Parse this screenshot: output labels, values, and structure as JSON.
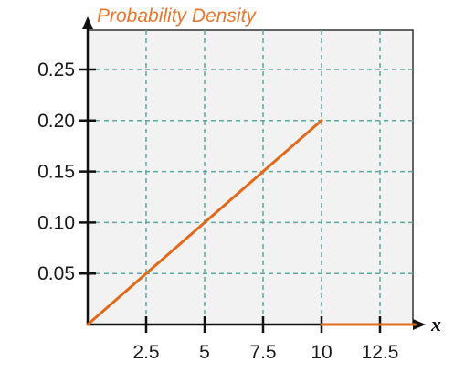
{
  "chart_data": {
    "type": "line",
    "title": "Probability Density",
    "xlabel": "x",
    "ylabel": "",
    "xlim": [
      0,
      14.25
    ],
    "ylim": [
      0,
      0.28
    ],
    "x_ticks": [
      2.5,
      5,
      7.5,
      10,
      12.5
    ],
    "x_tick_labels": [
      "2.5",
      "5",
      "7.5",
      "10",
      "12.5"
    ],
    "y_ticks": [
      0.05,
      0.1,
      0.15,
      0.2,
      0.25
    ],
    "y_tick_labels": [
      "0.05",
      "0.10",
      "0.15",
      "0.20",
      "0.25"
    ],
    "grid": true,
    "series": [
      {
        "segments": [
          [
            [
              0,
              0
            ],
            [
              10,
              0.2
            ]
          ],
          [
            [
              10,
              0
            ],
            [
              14,
              0
            ]
          ]
        ]
      }
    ]
  },
  "colors": {
    "plot_background": "#f2f2f2",
    "plot_border": "#333333",
    "grid": "#5fa8a0",
    "line": "#e06a1b",
    "title": "#e8772e",
    "axis": "#111111"
  }
}
